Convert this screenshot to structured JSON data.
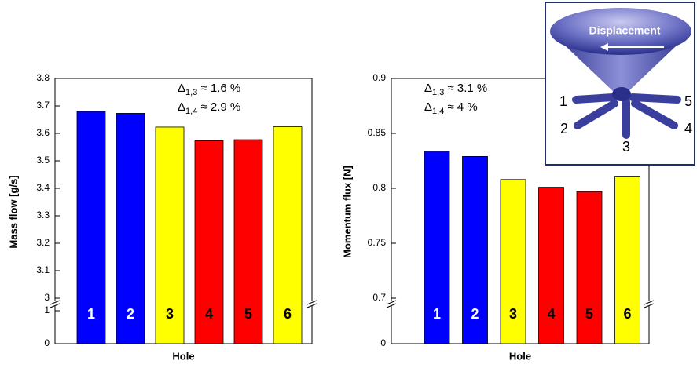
{
  "chart_data": [
    {
      "type": "bar",
      "xlabel": "Hole",
      "ylabel": "Mass flow [g/s]",
      "categories": [
        "1",
        "2",
        "3",
        "4",
        "5",
        "6"
      ],
      "values": [
        3.68,
        3.673,
        3.623,
        3.573,
        3.577,
        3.624
      ],
      "colors": [
        "#0000ff",
        "#0000ff",
        "#ffff00",
        "#ff0000",
        "#ff0000",
        "#ffff00"
      ],
      "ylim": [
        0,
        3.8
      ],
      "ybreak": 3,
      "yticks": [
        0,
        1,
        3,
        3.1,
        3.2,
        3.3,
        3.4,
        3.5,
        3.6,
        3.7,
        3.8
      ],
      "annotations": [
        {
          "symbol": "Δ",
          "sub": "1,3",
          "text": " ≈ 1.6 %"
        },
        {
          "symbol": "Δ",
          "sub": "1,4",
          "text": " ≈ 2.9 %"
        }
      ]
    },
    {
      "type": "bar",
      "xlabel": "Hole",
      "ylabel": "Momentum flux [N]",
      "categories": [
        "1",
        "2",
        "3",
        "4",
        "5",
        "6"
      ],
      "values": [
        0.834,
        0.829,
        0.808,
        0.801,
        0.797,
        0.811
      ],
      "colors": [
        "#0000ff",
        "#0000ff",
        "#ffff00",
        "#ff0000",
        "#ff0000",
        "#ffff00"
      ],
      "ylim": [
        0,
        0.9
      ],
      "ybreak": 0.7,
      "yticks": [
        0,
        0.7,
        0.75,
        0.8,
        0.85,
        0.9
      ],
      "annotations": [
        {
          "symbol": "Δ",
          "sub": "1,3",
          "text": " ≈ 3.1 %"
        },
        {
          "symbol": "Δ",
          "sub": "1,4",
          "text": " ≈ 4 %"
        }
      ]
    }
  ],
  "inset": {
    "title": "Displacement",
    "labels": [
      "1",
      "2",
      "3",
      "4",
      "5"
    ]
  }
}
